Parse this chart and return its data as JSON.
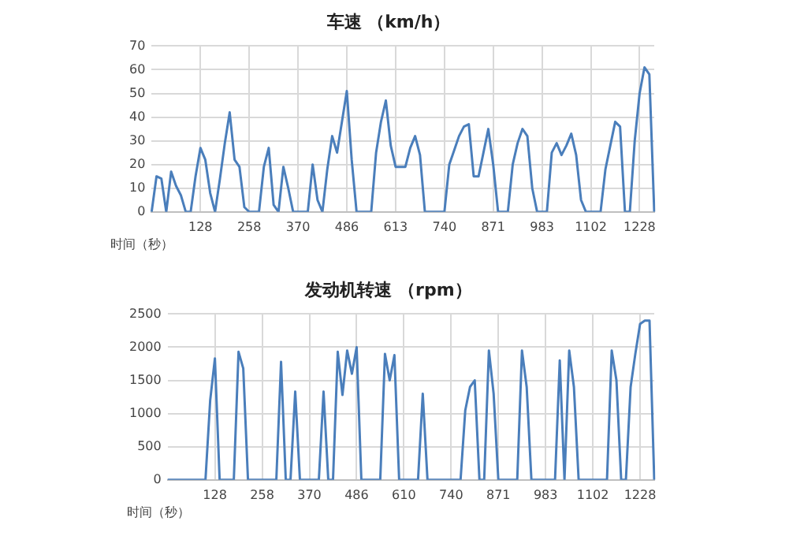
{
  "chart_data": [
    {
      "type": "line",
      "title": "车速 （km/h）",
      "xlabel": "时间（秒）",
      "color": "#4a7ebb",
      "marker": "none",
      "grid": true,
      "categories": [
        null,
        null,
        null,
        null,
        null,
        null,
        null,
        null,
        null,
        null,
        "128",
        null,
        null,
        null,
        null,
        null,
        null,
        null,
        null,
        null,
        "258",
        null,
        null,
        null,
        null,
        null,
        null,
        null,
        null,
        null,
        "370",
        null,
        null,
        null,
        null,
        null,
        null,
        null,
        null,
        null,
        "486",
        null,
        null,
        null,
        null,
        null,
        null,
        null,
        null,
        null,
        "613",
        null,
        null,
        null,
        null,
        null,
        null,
        null,
        null,
        null,
        "740",
        null,
        null,
        null,
        null,
        null,
        null,
        null,
        null,
        null,
        "871",
        null,
        null,
        null,
        null,
        null,
        null,
        null,
        null,
        null,
        "983",
        null,
        null,
        null,
        null,
        null,
        null,
        null,
        null,
        null,
        "1102",
        null,
        null,
        null,
        null,
        null,
        null,
        null,
        null,
        null,
        "1228",
        null,
        null,
        null
      ],
      "values": [
        0,
        15,
        14,
        0,
        17,
        11,
        7,
        0,
        0,
        15,
        27,
        22,
        8,
        0,
        14,
        29,
        42,
        22,
        19,
        2,
        0,
        0,
        0,
        19,
        27,
        3,
        0,
        19,
        10,
        0,
        0,
        0,
        0,
        20,
        5,
        0,
        18,
        32,
        25,
        38,
        51,
        22,
        0,
        0,
        0,
        0,
        25,
        38,
        47,
        28,
        19,
        19,
        19,
        27,
        32,
        24,
        0,
        0,
        0,
        0,
        0,
        20,
        26,
        32,
        36,
        37,
        15,
        15,
        25,
        35,
        20,
        0,
        0,
        0,
        20,
        29,
        35,
        32,
        10,
        0,
        0,
        0,
        25,
        29,
        24,
        28,
        33,
        24,
        5,
        0,
        0,
        0,
        0,
        18,
        28,
        38,
        36,
        0,
        0,
        30,
        50,
        61,
        58,
        0
      ],
      "ylim": [
        0,
        70
      ],
      "yticks": [
        0,
        10,
        20,
        30,
        40,
        50,
        60,
        70
      ]
    },
    {
      "type": "line",
      "title": "发动机转速 （rpm）",
      "xlabel": "时间（秒）",
      "color": "#4a7ebb",
      "marker": "none",
      "grid": true,
      "categories": [
        null,
        null,
        null,
        null,
        null,
        null,
        null,
        null,
        null,
        null,
        "128",
        null,
        null,
        null,
        null,
        null,
        null,
        null,
        null,
        null,
        "258",
        null,
        null,
        null,
        null,
        null,
        null,
        null,
        null,
        null,
        "370",
        null,
        null,
        null,
        null,
        null,
        null,
        null,
        null,
        null,
        "486",
        null,
        null,
        null,
        null,
        null,
        null,
        null,
        null,
        null,
        "610",
        null,
        null,
        null,
        null,
        null,
        null,
        null,
        null,
        null,
        "740",
        null,
        null,
        null,
        null,
        null,
        null,
        null,
        null,
        null,
        "871",
        null,
        null,
        null,
        null,
        null,
        null,
        null,
        null,
        null,
        "983",
        null,
        null,
        null,
        null,
        null,
        null,
        null,
        null,
        null,
        "1102",
        null,
        null,
        null,
        null,
        null,
        null,
        null,
        null,
        null,
        "1228",
        null,
        null,
        null
      ],
      "values": [
        0,
        0,
        0,
        0,
        0,
        0,
        0,
        0,
        0,
        1200,
        1830,
        0,
        0,
        0,
        0,
        1930,
        1680,
        0,
        0,
        0,
        0,
        0,
        0,
        0,
        1780,
        0,
        0,
        1330,
        0,
        0,
        0,
        0,
        0,
        1330,
        0,
        0,
        1930,
        1280,
        1950,
        1600,
        2000,
        0,
        0,
        0,
        0,
        0,
        1900,
        1500,
        1880,
        0,
        0,
        0,
        0,
        0,
        1300,
        0,
        0,
        0,
        0,
        0,
        0,
        0,
        0,
        1050,
        1400,
        1500,
        0,
        0,
        1950,
        1300,
        0,
        0,
        0,
        0,
        0,
        1950,
        1400,
        0,
        0,
        0,
        0,
        0,
        0,
        1800,
        0,
        1950,
        1400,
        0,
        0,
        0,
        0,
        0,
        0,
        0,
        1950,
        1500,
        0,
        0,
        1400,
        1900,
        2350,
        2400,
        2400,
        0
      ],
      "ylim": [
        0,
        2500
      ],
      "yticks": [
        0,
        500,
        1000,
        1500,
        2000,
        2500
      ]
    }
  ]
}
